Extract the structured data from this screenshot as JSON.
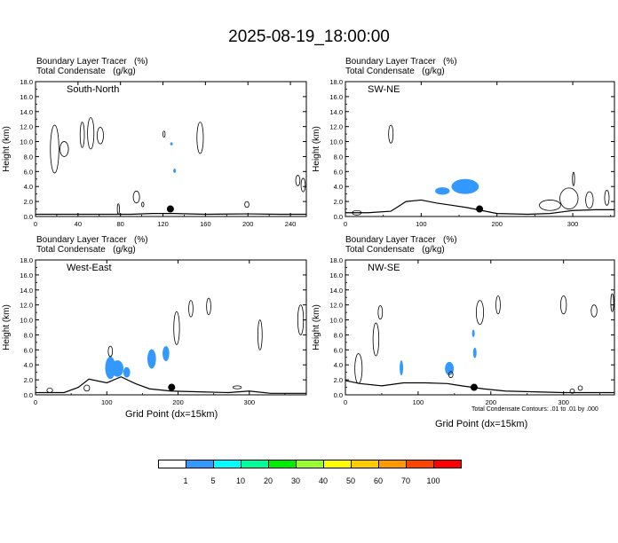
{
  "page_title": "2025-08-19_18:00:00",
  "panel_header": [
    "Boundary Layer Tracer   (%)",
    "Total Condensate   (g/kg)"
  ],
  "footnote": "Total Condensate Contours: .01 to .01 by .000",
  "xlabel": "Grid Point (dx=15km)",
  "ylabel": "Height (km)",
  "legend": {
    "labels": [
      "1",
      "5",
      "10",
      "20",
      "30",
      "40",
      "50",
      "60",
      "70",
      "100"
    ],
    "colors": [
      "#ffffff",
      "#3399ff",
      "#00ffff",
      "#00ff99",
      "#00ee00",
      "#99ff33",
      "#ffff00",
      "#ffcc00",
      "#ff9900",
      "#ff4400",
      "#ff0000"
    ]
  },
  "chart_data": [
    {
      "type": "heatmap",
      "label": "South-North",
      "xlim": [
        0,
        255
      ],
      "ylim": [
        0,
        18
      ],
      "xticks": [
        0,
        40,
        80,
        120,
        160,
        200,
        240
      ],
      "yticks": [
        "0.0",
        "2.0",
        "4.0",
        "6.0",
        "8.0",
        "10.0",
        "12.0",
        "14.0",
        "16.0",
        "18.0"
      ],
      "marker": {
        "x": 127,
        "y": 1.0
      },
      "terrain": [
        [
          0,
          0.3
        ],
        [
          90,
          0.3
        ],
        [
          110,
          0.4
        ],
        [
          130,
          0.4
        ],
        [
          160,
          0.3
        ],
        [
          200,
          0.35
        ],
        [
          230,
          0.3
        ],
        [
          255,
          0.3
        ]
      ],
      "tracer_patches": [
        [
          131,
          6.1,
          1,
          0.3
        ],
        [
          128,
          9.7,
          0.5,
          0.2
        ]
      ],
      "condensate_contours": [
        [
          18,
          9.0,
          4,
          3.2
        ],
        [
          27,
          9.0,
          4,
          1.0
        ],
        [
          44,
          10.9,
          2,
          1.7
        ],
        [
          52,
          11.1,
          3,
          2.1
        ],
        [
          61,
          10.8,
          3,
          1.1
        ],
        [
          78,
          1.0,
          1,
          0.7
        ],
        [
          95,
          2.6,
          3,
          0.8
        ],
        [
          101,
          1.6,
          1,
          0.3
        ],
        [
          121,
          11.0,
          1,
          0.4
        ],
        [
          155,
          10.5,
          3,
          2.1
        ],
        [
          199,
          1.6,
          2,
          0.4
        ],
        [
          247,
          4.8,
          2,
          0.7
        ],
        [
          252,
          4.2,
          2,
          0.9
        ]
      ]
    },
    {
      "type": "heatmap",
      "label": "SW-NE",
      "xlim": [
        0,
        355
      ],
      "ylim": [
        0,
        18
      ],
      "xticks": [
        0,
        100,
        200,
        300
      ],
      "yticks": [
        "0.0",
        "2.0",
        "4.0",
        "6.0",
        "8.0",
        "10.0",
        "12.0",
        "14.0",
        "16.0",
        "18.0"
      ],
      "marker": {
        "x": 177,
        "y": 1.0
      },
      "terrain": [
        [
          0,
          0.5
        ],
        [
          30,
          0.5
        ],
        [
          60,
          0.7
        ],
        [
          80,
          2.0
        ],
        [
          100,
          2.2
        ],
        [
          120,
          1.8
        ],
        [
          140,
          1.5
        ],
        [
          160,
          1.2
        ],
        [
          180,
          0.8
        ],
        [
          200,
          0.4
        ],
        [
          240,
          0.3
        ],
        [
          270,
          0.4
        ],
        [
          300,
          0.8
        ],
        [
          330,
          0.9
        ],
        [
          355,
          0.9
        ]
      ],
      "tracer_patches": [
        [
          128,
          3.4,
          8,
          0.5
        ],
        [
          158,
          4.0,
          15,
          1.0
        ]
      ],
      "condensate_contours": [
        [
          15,
          0.5,
          6,
          0.3
        ],
        [
          60,
          11.0,
          3,
          1.2
        ],
        [
          270,
          1.5,
          14,
          0.7
        ],
        [
          295,
          2.4,
          12,
          1.4
        ],
        [
          301,
          5.0,
          1,
          0.9
        ],
        [
          322,
          2.2,
          5,
          1.1
        ],
        [
          345,
          2.5,
          3,
          1.0
        ]
      ]
    },
    {
      "type": "heatmap",
      "label": "West-East",
      "xlim": [
        0,
        380
      ],
      "ylim": [
        0,
        18
      ],
      "xticks": [
        0,
        100,
        200,
        300
      ],
      "yticks": [
        "0.0",
        "2.0",
        "4.0",
        "6.0",
        "8.0",
        "10.0",
        "12.0",
        "14.0",
        "16.0",
        "18.0"
      ],
      "marker": {
        "x": 191,
        "y": 1.0
      },
      "terrain": [
        [
          0,
          0.3
        ],
        [
          40,
          0.3
        ],
        [
          60,
          1.0
        ],
        [
          75,
          2.1
        ],
        [
          100,
          1.6
        ],
        [
          120,
          2.4
        ],
        [
          140,
          1.5
        ],
        [
          160,
          0.8
        ],
        [
          190,
          0.5
        ],
        [
          230,
          0.4
        ],
        [
          270,
          0.3
        ],
        [
          300,
          0.5
        ],
        [
          330,
          0.2
        ],
        [
          380,
          0.2
        ]
      ],
      "tracer_patches": [
        [
          105,
          3.6,
          6,
          1.5
        ],
        [
          115,
          3.5,
          7,
          1.1
        ],
        [
          128,
          3.0,
          4,
          0.7
        ],
        [
          163,
          4.8,
          5,
          1.3
        ],
        [
          183,
          5.5,
          4,
          1.0
        ]
      ],
      "condensate_contours": [
        [
          20,
          0.6,
          4,
          0.3
        ],
        [
          72,
          0.9,
          4,
          0.4
        ],
        [
          105,
          5.8,
          3,
          0.7
        ],
        [
          198,
          8.9,
          4,
          2.2
        ],
        [
          218,
          11.5,
          3,
          1.1
        ],
        [
          243,
          11.8,
          3,
          1.1
        ],
        [
          283,
          1.0,
          6,
          0.2
        ],
        [
          315,
          8.0,
          3,
          2.0
        ],
        [
          372,
          10.0,
          4,
          2.0
        ]
      ]
    },
    {
      "type": "heatmap",
      "label": "NW-SE",
      "xlim": [
        0,
        370
      ],
      "ylim": [
        0,
        18
      ],
      "xticks": [
        0,
        100,
        200,
        300
      ],
      "yticks": [
        "0.0",
        "2.0",
        "4.0",
        "6.0",
        "8.0",
        "10.0",
        "12.0",
        "14.0",
        "16.0",
        "18.0"
      ],
      "marker": {
        "x": 177,
        "y": 1.0
      },
      "terrain": [
        [
          0,
          1.9
        ],
        [
          20,
          1.5
        ],
        [
          50,
          1.2
        ],
        [
          80,
          1.6
        ],
        [
          110,
          1.6
        ],
        [
          140,
          1.5
        ],
        [
          160,
          1.2
        ],
        [
          190,
          0.8
        ],
        [
          220,
          0.5
        ],
        [
          260,
          0.4
        ],
        [
          300,
          0.3
        ],
        [
          370,
          0.3
        ]
      ],
      "tracer_patches": [
        [
          77,
          3.6,
          2,
          1.0
        ],
        [
          143,
          3.5,
          5,
          0.9
        ],
        [
          178,
          5.6,
          2,
          0.7
        ],
        [
          176,
          8.2,
          1,
          0.5
        ]
      ],
      "condensate_contours": [
        [
          18,
          3.5,
          5,
          2.0
        ],
        [
          42,
          7.4,
          4,
          2.2
        ],
        [
          48,
          11.0,
          3,
          0.9
        ],
        [
          145,
          2.7,
          3,
          0.4
        ],
        [
          185,
          11.0,
          5,
          1.6
        ],
        [
          210,
          12.0,
          3,
          1.2
        ],
        [
          300,
          12.0,
          4,
          1.2
        ],
        [
          342,
          11.2,
          4,
          0.8
        ],
        [
          367,
          12.3,
          2,
          1.2
        ],
        [
          312,
          0.5,
          3,
          0.3
        ],
        [
          323,
          0.9,
          3,
          0.3
        ]
      ]
    }
  ]
}
